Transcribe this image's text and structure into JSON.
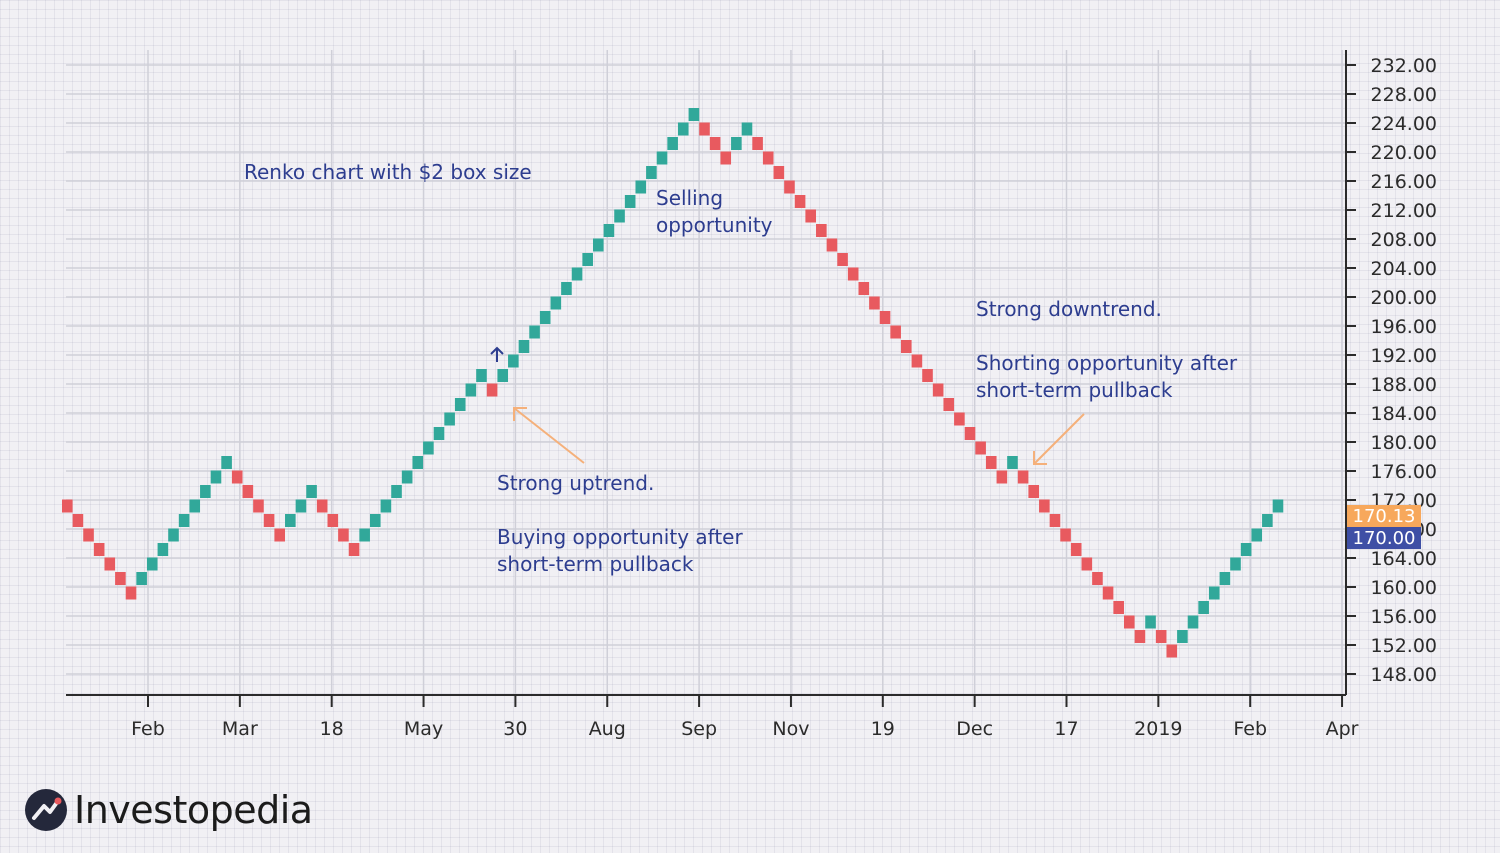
{
  "chart_data": {
    "type": "renko",
    "title": "Renko chart with $2 box size",
    "box_size": 2,
    "ylim": [
      144,
      234
    ],
    "y_ticks": [
      "232.00",
      "228.00",
      "224.00",
      "220.00",
      "216.00",
      "212.00",
      "208.00",
      "204.00",
      "200.00",
      "196.00",
      "192.00",
      "188.00",
      "184.00",
      "180.00",
      "176.00",
      "172.00",
      "168.00",
      "164.00",
      "160.00",
      "156.00",
      "152.00",
      "148.00"
    ],
    "x_ticks": [
      "Feb",
      "Mar",
      "18",
      "May",
      "30",
      "Aug",
      "Sep",
      "Nov",
      "19",
      "Dec",
      "17",
      "2019",
      "Feb",
      "Apr"
    ],
    "last_price": "170.13",
    "current_box": "170.00",
    "colors": {
      "up": "#31a89a",
      "down": "#e85a5f",
      "price_tag": "#f7a85c",
      "box_tag": "#3e4fa5",
      "annotation": "#2d3d8f",
      "arrow": "#f5b07a"
    },
    "bricks": [
      {
        "top": 172,
        "dir": "down"
      },
      {
        "top": 170,
        "dir": "down"
      },
      {
        "top": 168,
        "dir": "down"
      },
      {
        "top": 166,
        "dir": "down"
      },
      {
        "top": 164,
        "dir": "down"
      },
      {
        "top": 162,
        "dir": "down"
      },
      {
        "top": 160,
        "dir": "down"
      },
      {
        "top": 162,
        "dir": "up"
      },
      {
        "top": 164,
        "dir": "up"
      },
      {
        "top": 166,
        "dir": "up"
      },
      {
        "top": 168,
        "dir": "up"
      },
      {
        "top": 170,
        "dir": "up"
      },
      {
        "top": 172,
        "dir": "up"
      },
      {
        "top": 174,
        "dir": "up"
      },
      {
        "top": 176,
        "dir": "up"
      },
      {
        "top": 178,
        "dir": "up"
      },
      {
        "top": 176,
        "dir": "down"
      },
      {
        "top": 174,
        "dir": "down"
      },
      {
        "top": 172,
        "dir": "down"
      },
      {
        "top": 170,
        "dir": "down"
      },
      {
        "top": 168,
        "dir": "down"
      },
      {
        "top": 170,
        "dir": "up"
      },
      {
        "top": 172,
        "dir": "up"
      },
      {
        "top": 174,
        "dir": "up"
      },
      {
        "top": 172,
        "dir": "down"
      },
      {
        "top": 170,
        "dir": "down"
      },
      {
        "top": 168,
        "dir": "down"
      },
      {
        "top": 166,
        "dir": "down"
      },
      {
        "top": 168,
        "dir": "up"
      },
      {
        "top": 170,
        "dir": "up"
      },
      {
        "top": 172,
        "dir": "up"
      },
      {
        "top": 174,
        "dir": "up"
      },
      {
        "top": 176,
        "dir": "up"
      },
      {
        "top": 178,
        "dir": "up"
      },
      {
        "top": 180,
        "dir": "up"
      },
      {
        "top": 182,
        "dir": "up"
      },
      {
        "top": 184,
        "dir": "up"
      },
      {
        "top": 186,
        "dir": "up"
      },
      {
        "top": 188,
        "dir": "up"
      },
      {
        "top": 190,
        "dir": "up"
      },
      {
        "top": 188,
        "dir": "down"
      },
      {
        "top": 190,
        "dir": "up"
      },
      {
        "top": 192,
        "dir": "up"
      },
      {
        "top": 194,
        "dir": "up"
      },
      {
        "top": 196,
        "dir": "up"
      },
      {
        "top": 198,
        "dir": "up"
      },
      {
        "top": 200,
        "dir": "up"
      },
      {
        "top": 202,
        "dir": "up"
      },
      {
        "top": 204,
        "dir": "up"
      },
      {
        "top": 206,
        "dir": "up"
      },
      {
        "top": 208,
        "dir": "up"
      },
      {
        "top": 210,
        "dir": "up"
      },
      {
        "top": 212,
        "dir": "up"
      },
      {
        "top": 214,
        "dir": "up"
      },
      {
        "top": 216,
        "dir": "up"
      },
      {
        "top": 218,
        "dir": "up"
      },
      {
        "top": 220,
        "dir": "up"
      },
      {
        "top": 222,
        "dir": "up"
      },
      {
        "top": 224,
        "dir": "up"
      },
      {
        "top": 226,
        "dir": "up"
      },
      {
        "top": 224,
        "dir": "down"
      },
      {
        "top": 222,
        "dir": "down"
      },
      {
        "top": 220,
        "dir": "down"
      },
      {
        "top": 222,
        "dir": "up"
      },
      {
        "top": 224,
        "dir": "up"
      },
      {
        "top": 222,
        "dir": "down"
      },
      {
        "top": 220,
        "dir": "down"
      },
      {
        "top": 218,
        "dir": "down"
      },
      {
        "top": 216,
        "dir": "down"
      },
      {
        "top": 214,
        "dir": "down"
      },
      {
        "top": 212,
        "dir": "down"
      },
      {
        "top": 210,
        "dir": "down"
      },
      {
        "top": 208,
        "dir": "down"
      },
      {
        "top": 206,
        "dir": "down"
      },
      {
        "top": 204,
        "dir": "down"
      },
      {
        "top": 202,
        "dir": "down"
      },
      {
        "top": 200,
        "dir": "down"
      },
      {
        "top": 198,
        "dir": "down"
      },
      {
        "top": 196,
        "dir": "down"
      },
      {
        "top": 194,
        "dir": "down"
      },
      {
        "top": 192,
        "dir": "down"
      },
      {
        "top": 190,
        "dir": "down"
      },
      {
        "top": 188,
        "dir": "down"
      },
      {
        "top": 186,
        "dir": "down"
      },
      {
        "top": 184,
        "dir": "down"
      },
      {
        "top": 182,
        "dir": "down"
      },
      {
        "top": 180,
        "dir": "down"
      },
      {
        "top": 178,
        "dir": "down"
      },
      {
        "top": 176,
        "dir": "down"
      },
      {
        "top": 178,
        "dir": "up"
      },
      {
        "top": 176,
        "dir": "down"
      },
      {
        "top": 174,
        "dir": "down"
      },
      {
        "top": 172,
        "dir": "down"
      },
      {
        "top": 170,
        "dir": "down"
      },
      {
        "top": 168,
        "dir": "down"
      },
      {
        "top": 166,
        "dir": "down"
      },
      {
        "top": 164,
        "dir": "down"
      },
      {
        "top": 162,
        "dir": "down"
      },
      {
        "top": 160,
        "dir": "down"
      },
      {
        "top": 158,
        "dir": "down"
      },
      {
        "top": 156,
        "dir": "down"
      },
      {
        "top": 154,
        "dir": "down"
      },
      {
        "top": 156,
        "dir": "up"
      },
      {
        "top": 154,
        "dir": "down"
      },
      {
        "top": 152,
        "dir": "down"
      },
      {
        "top": 154,
        "dir": "up"
      },
      {
        "top": 156,
        "dir": "up"
      },
      {
        "top": 158,
        "dir": "up"
      },
      {
        "top": 160,
        "dir": "up"
      },
      {
        "top": 162,
        "dir": "up"
      },
      {
        "top": 164,
        "dir": "up"
      },
      {
        "top": 166,
        "dir": "up"
      },
      {
        "top": 168,
        "dir": "up"
      },
      {
        "top": 170,
        "dir": "up"
      },
      {
        "top": 172,
        "dir": "up"
      }
    ],
    "annotations": {
      "selling": [
        "Selling",
        "opportunity"
      ],
      "downtrend": "Strong downtrend.",
      "shorting": [
        "Shorting opportunity after",
        "short-term pullback"
      ],
      "uptrend": "Strong uptrend.",
      "buying": [
        "Buying opportunity after",
        "short-term pullback"
      ]
    }
  },
  "brand": {
    "name": "Investopedia"
  }
}
